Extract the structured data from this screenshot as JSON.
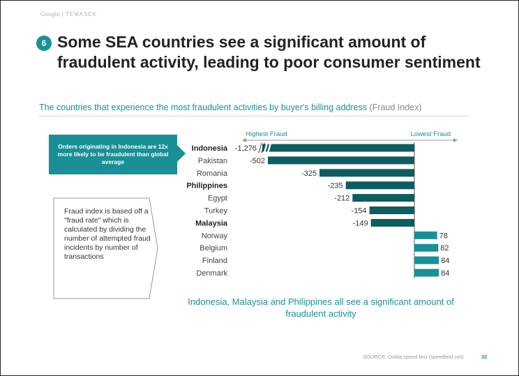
{
  "header": {
    "brand_primary": "Google",
    "brand_separator": "|",
    "brand_secondary": "TEMASEK"
  },
  "slide": {
    "badge": "6",
    "title": "Some SEA countries see a significant amount of fraudulent activity, leading to poor consumer sentiment",
    "subtitle": "The countries that experience the most fraudulent activities by buyer's billing address",
    "subtitle_unit": "(Fraud Index)",
    "callout": "Orders originating in Indonesia are 12x more likely to be fraudulent than global average",
    "note": "Fraud index is based off a \"fraud rate\" which is calculated by dividing the number of attempted fraud incidents by number of transactions",
    "summary": "Indonesia, Malaysia and Philippines all see a significant amount of fraudulent activity",
    "source": "SOURCE: Ookla speed test (speedtest.net)",
    "page_number": "32"
  },
  "colors": {
    "teal": "#1a8f96",
    "dark_teal": "#0f5c5f",
    "text": "#333333"
  },
  "chart_data": {
    "type": "bar",
    "orientation": "horizontal",
    "title": "",
    "xlabel": "",
    "ylabel": "",
    "axis_left_label": "Highest Fraud",
    "axis_right_label": "Lowest Fraud",
    "axis_break_on": "Indonesia",
    "categories": [
      "Indonesia",
      "Pakistan",
      "Romania",
      "Philippines",
      "Egypt",
      "Turkey",
      "Malaysia",
      "Norway",
      "Belgium",
      "Finland",
      "Denmark"
    ],
    "highlighted": [
      "Indonesia",
      "Philippines",
      "Malaysia"
    ],
    "values": [
      -1276,
      -502,
      -325,
      -235,
      -212,
      -154,
      -149,
      78,
      82,
      84,
      84
    ],
    "value_labels": [
      "-1,276",
      "-502",
      "-325",
      "-235",
      "-212",
      "-154",
      "-149",
      "78",
      "82",
      "84",
      "84"
    ],
    "negative_color": "#0f5c5f",
    "positive_color": "#1a8f96"
  }
}
